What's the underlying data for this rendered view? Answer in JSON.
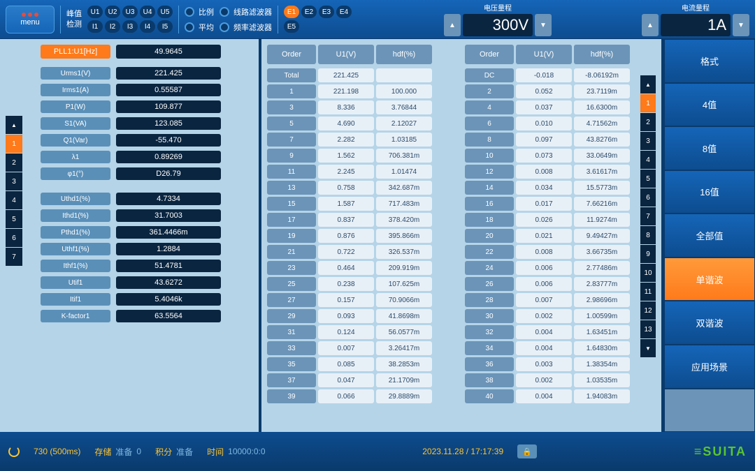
{
  "topbar": {
    "menu": "menu",
    "peak_detect": "峰值\n检测",
    "u_channels": [
      "U1",
      "U2",
      "U3",
      "U4",
      "U5"
    ],
    "i_channels": [
      "I1",
      "I2",
      "I3",
      "I4",
      "I5"
    ],
    "ratio": "比例",
    "avg": "平均",
    "line_filter": "线路滤波器",
    "freq_filter": "频率滤波器",
    "e_channels": [
      "E1",
      "E2",
      "E3",
      "E4",
      "E5"
    ],
    "e_active": 0,
    "voltage_range": {
      "label": "电压量程",
      "value": "300V"
    },
    "current_range": {
      "label": "电流量程",
      "value": "1A"
    }
  },
  "left": {
    "pll": {
      "label": "PLL1:U1[Hz]",
      "value": "49.9645"
    },
    "group1": [
      {
        "label": "Urms1(V)",
        "value": "221.425"
      },
      {
        "label": "Irms1(A)",
        "value": "0.55587"
      },
      {
        "label": "P1(W)",
        "value": "109.877"
      },
      {
        "label": "S1(VA)",
        "value": "123.085"
      },
      {
        "label": "Q1(Var)",
        "value": "-55.470"
      },
      {
        "label": "λ1",
        "value": "0.89269"
      },
      {
        "label": "φ1(°)",
        "value": "D26.79"
      }
    ],
    "group2": [
      {
        "label": "Uthd1(%)",
        "value": "4.7334"
      },
      {
        "label": "Ithd1(%)",
        "value": "31.7003"
      },
      {
        "label": "Pthd1(%)",
        "value": "361.4466m"
      },
      {
        "label": "Uthf1(%)",
        "value": "1.2884"
      },
      {
        "label": "Ithf1(%)",
        "value": "51.4781"
      },
      {
        "label": "Utif1",
        "value": "43.6272"
      },
      {
        "label": "Itif1",
        "value": "5.4046k"
      },
      {
        "label": "K-factor1",
        "value": "63.5564"
      }
    ],
    "tabs": [
      "1",
      "2",
      "3",
      "4",
      "5",
      "6",
      "7"
    ],
    "active_tab": 0
  },
  "harmonics": {
    "headers": [
      "Order",
      "U1(V)",
      "hdf(%)"
    ],
    "left": [
      {
        "o": "Total",
        "u": "221.425",
        "h": ""
      },
      {
        "o": "1",
        "u": "221.198",
        "h": "100.000"
      },
      {
        "o": "3",
        "u": "8.336",
        "h": "3.76844"
      },
      {
        "o": "5",
        "u": "4.690",
        "h": "2.12027"
      },
      {
        "o": "7",
        "u": "2.282",
        "h": "1.03185"
      },
      {
        "o": "9",
        "u": "1.562",
        "h": "706.381m"
      },
      {
        "o": "11",
        "u": "2.245",
        "h": "1.01474"
      },
      {
        "o": "13",
        "u": "0.758",
        "h": "342.687m"
      },
      {
        "o": "15",
        "u": "1.587",
        "h": "717.483m"
      },
      {
        "o": "17",
        "u": "0.837",
        "h": "378.420m"
      },
      {
        "o": "19",
        "u": "0.876",
        "h": "395.866m"
      },
      {
        "o": "21",
        "u": "0.722",
        "h": "326.537m"
      },
      {
        "o": "23",
        "u": "0.464",
        "h": "209.919m"
      },
      {
        "o": "25",
        "u": "0.238",
        "h": "107.625m"
      },
      {
        "o": "27",
        "u": "0.157",
        "h": "70.9066m"
      },
      {
        "o": "29",
        "u": "0.093",
        "h": "41.8698m"
      },
      {
        "o": "31",
        "u": "0.124",
        "h": "56.0577m"
      },
      {
        "o": "33",
        "u": "0.007",
        "h": "3.26417m"
      },
      {
        "o": "35",
        "u": "0.085",
        "h": "38.2853m"
      },
      {
        "o": "37",
        "u": "0.047",
        "h": "21.1709m"
      },
      {
        "o": "39",
        "u": "0.066",
        "h": "29.8889m"
      }
    ],
    "right": [
      {
        "o": "DC",
        "u": "-0.018",
        "h": "-8.06192m"
      },
      {
        "o": "2",
        "u": "0.052",
        "h": "23.7119m"
      },
      {
        "o": "4",
        "u": "0.037",
        "h": "16.6300m"
      },
      {
        "o": "6",
        "u": "0.010",
        "h": "4.71562m"
      },
      {
        "o": "8",
        "u": "0.097",
        "h": "43.8276m"
      },
      {
        "o": "10",
        "u": "0.073",
        "h": "33.0649m"
      },
      {
        "o": "12",
        "u": "0.008",
        "h": "3.61617m"
      },
      {
        "o": "14",
        "u": "0.034",
        "h": "15.5773m"
      },
      {
        "o": "16",
        "u": "0.017",
        "h": "7.66216m"
      },
      {
        "o": "18",
        "u": "0.026",
        "h": "11.9274m"
      },
      {
        "o": "20",
        "u": "0.021",
        "h": "9.49427m"
      },
      {
        "o": "22",
        "u": "0.008",
        "h": "3.66735m"
      },
      {
        "o": "24",
        "u": "0.006",
        "h": "2.77486m"
      },
      {
        "o": "26",
        "u": "0.006",
        "h": "2.83777m"
      },
      {
        "o": "28",
        "u": "0.007",
        "h": "2.98696m"
      },
      {
        "o": "30",
        "u": "0.002",
        "h": "1.00599m"
      },
      {
        "o": "32",
        "u": "0.004",
        "h": "1.63451m"
      },
      {
        "o": "34",
        "u": "0.004",
        "h": "1.64830m"
      },
      {
        "o": "36",
        "u": "0.003",
        "h": "1.38354m"
      },
      {
        "o": "38",
        "u": "0.002",
        "h": "1.03535m"
      },
      {
        "o": "40",
        "u": "0.004",
        "h": "1.94083m"
      }
    ],
    "tabs": [
      "1",
      "2",
      "3",
      "4",
      "5",
      "6",
      "7",
      "8",
      "9",
      "10",
      "11",
      "12",
      "13"
    ],
    "active_tab": 0
  },
  "right_menu": {
    "items": [
      "格式",
      "4值",
      "8值",
      "16值",
      "全部值",
      "单谐波",
      "双谐波",
      "应用场景",
      ""
    ],
    "active": 5
  },
  "bottom": {
    "refresh": "730 (500ms)",
    "storage": {
      "l": "存储",
      "v": "准备"
    },
    "count": "0",
    "integral": {
      "l": "积分",
      "v": "准备"
    },
    "time": {
      "l": "时间",
      "v": "10000:0:0"
    },
    "datetime": "2023.11.28 / 17:17:39",
    "logo": "≡SUITA"
  }
}
